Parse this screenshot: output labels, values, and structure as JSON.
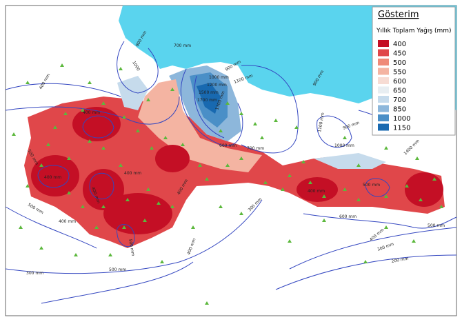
{
  "legend": {
    "title": "Gösterim",
    "subtitle": "Yıllık Toplam Yağış (mm)",
    "items": [
      {
        "label": "400",
        "color": "#c40f25"
      },
      {
        "label": "450",
        "color": "#e0474a"
      },
      {
        "label": "500",
        "color": "#ef8a78"
      },
      {
        "label": "550",
        "color": "#f4b4a2"
      },
      {
        "label": "600",
        "color": "#f7dcd4"
      },
      {
        "label": "650",
        "color": "#e8eef2"
      },
      {
        "label": "700",
        "color": "#c6dbec"
      },
      {
        "label": "850",
        "color": "#8db7db"
      },
      {
        "label": "1000",
        "color": "#4a8fc7"
      },
      {
        "label": "1150",
        "color": "#1869b0"
      }
    ]
  },
  "contour_labels": [
    "700 mm",
    "800 mm",
    "1000",
    "900 mm",
    "1000 mm",
    "1100 mm",
    "1200 mm",
    "1500 mm",
    "1700 mm",
    "1300 mm",
    "900 mm",
    "1100 mm",
    "1000 mm",
    "900 mm",
    "1400 mm",
    "400 mm",
    "400 mm",
    "500 mm",
    "600 mm",
    "700 mm",
    "400 mm",
    "400 mm",
    "400 mm",
    "400 mm",
    "400 mm",
    "500 mm",
    "500 mm",
    "400 mm",
    "500 mm",
    "300 mm",
    "600 mm",
    "500 mm",
    "400 mm",
    "300 mm",
    "200 mm",
    "300 mm",
    "500 mm",
    "400 mm"
  ]
}
